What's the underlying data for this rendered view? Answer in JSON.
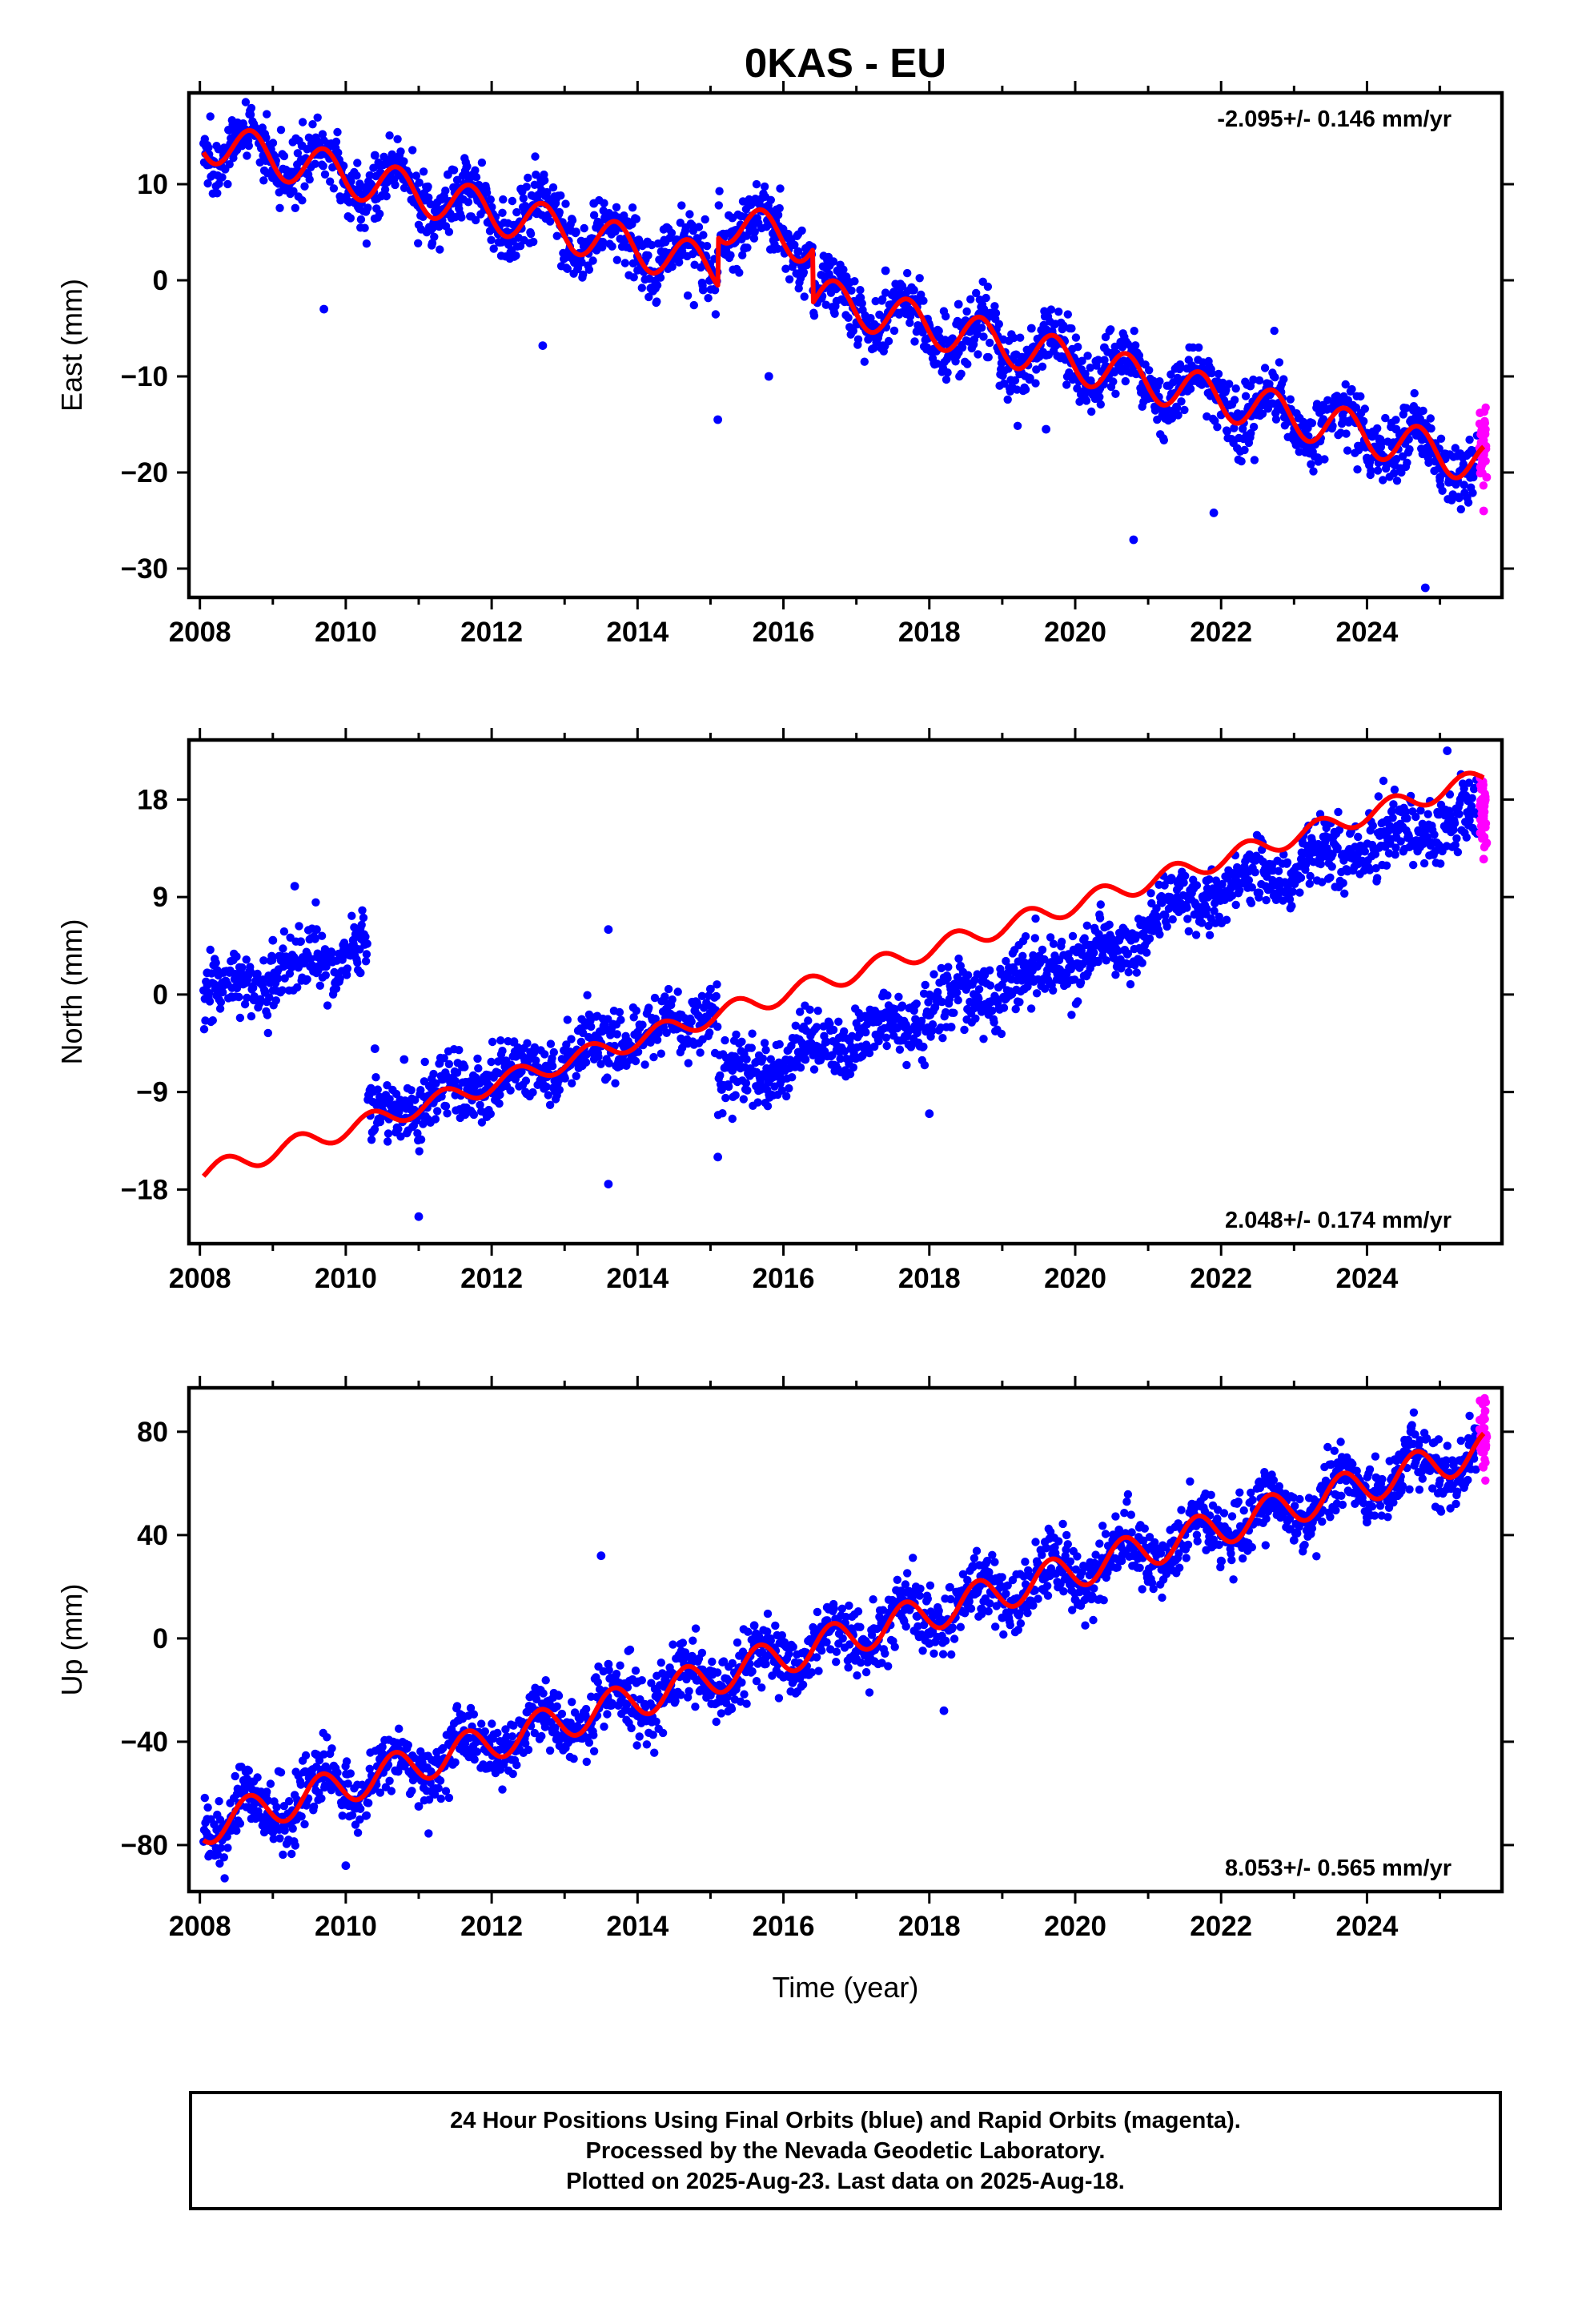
{
  "chart_data": {
    "type": "scatter",
    "title": "0KAS - EU",
    "xlabel": "Time (year)",
    "x_ticks": [
      "2008",
      "2010",
      "2012",
      "2014",
      "2016",
      "2018",
      "2020",
      "2022",
      "2024"
    ],
    "xlim": [
      2007.85,
      2025.85
    ],
    "colors": {
      "final_orbits": "#0000ff",
      "rapid_orbits": "#ff00ff",
      "model_fit": "#ff0000"
    },
    "panels": [
      {
        "ylabel": "East (mm)",
        "ylim": [
          -33,
          19.5
        ],
        "y_ticks": [
          10,
          0,
          -10,
          -20,
          -30
        ],
        "rate_label": "-2.095+/- 0.146 mm/yr",
        "rate_position": "top-right",
        "model": {
          "start_year": 2008.05,
          "end_year": 2025.6,
          "start_mm": 14.6,
          "end_mm": -18.6,
          "seasonal_amplitude_mm": 2.2,
          "phase_year": 0.45,
          "offsets": [
            {
              "year": 2015.1,
              "mm": 5.0
            },
            {
              "year": 2016.4,
              "mm": -5.5
            }
          ]
        },
        "observations": [
          [
            2008.1,
            12.0
          ],
          [
            2008.5,
            15.5
          ],
          [
            2009.0,
            11.5
          ],
          [
            2009.4,
            14.0
          ],
          [
            2009.7,
            -3.0
          ],
          [
            2010.0,
            10.5
          ],
          [
            2010.4,
            13.0
          ],
          [
            2011.0,
            8.5
          ],
          [
            2011.4,
            11.0
          ],
          [
            2012.0,
            6.5
          ],
          [
            2012.4,
            9.5
          ],
          [
            2012.7,
            -6.8
          ],
          [
            2013.0,
            5.0
          ],
          [
            2013.4,
            8.0
          ],
          [
            2014.0,
            2.5
          ],
          [
            2014.4,
            5.5
          ],
          [
            2014.9,
            -1.0
          ],
          [
            2015.1,
            -14.5
          ],
          [
            2015.3,
            6.5
          ],
          [
            2015.8,
            -10.0
          ],
          [
            2016.2,
            3.0
          ],
          [
            2016.8,
            -2.0
          ],
          [
            2017.4,
            1.0
          ],
          [
            2018.0,
            -5.0
          ],
          [
            2018.4,
            -2.5
          ],
          [
            2019.0,
            -8.0
          ],
          [
            2019.4,
            -5.0
          ],
          [
            2019.6,
            -15.5
          ],
          [
            2020.0,
            -10.0
          ],
          [
            2020.4,
            -7.0
          ],
          [
            2020.8,
            -27.0
          ],
          [
            2021.0,
            -12.0
          ],
          [
            2021.4,
            -9.0
          ],
          [
            2021.9,
            -24.2
          ],
          [
            2022.0,
            -14.0
          ],
          [
            2022.4,
            -11.0
          ],
          [
            2023.0,
            -16.0
          ],
          [
            2023.4,
            -13.0
          ],
          [
            2024.0,
            -18.5
          ],
          [
            2024.4,
            -15.5
          ],
          [
            2024.8,
            -32.0
          ],
          [
            2025.0,
            -20.5
          ],
          [
            2025.4,
            -18.0
          ]
        ],
        "rapid": [
          [
            2025.55,
            -13.8
          ],
          [
            2025.58,
            -19.0
          ],
          [
            2025.6,
            -24.0
          ],
          [
            2025.62,
            -16.0
          ],
          [
            2025.64,
            -20.5
          ]
        ]
      },
      {
        "ylabel": "North (mm)",
        "ylim": [
          -23,
          23.5
        ],
        "y_ticks": [
          18,
          9,
          0,
          -9,
          -18
        ],
        "rate_label": "2.048+/- 0.174 mm/yr",
        "rate_position": "bottom-right",
        "model": {
          "start_year": 2008.05,
          "end_year": 2025.6,
          "start_mm": -16.5,
          "end_mm": 20.0,
          "seasonal_amplitude_mm": 0.9,
          "phase_year": 0.1,
          "offsets": []
        },
        "observations": [
          [
            2008.1,
            2.0
          ],
          [
            2008.5,
            3.5
          ],
          [
            2009.0,
            5.0
          ],
          [
            2009.3,
            10.0
          ],
          [
            2009.6,
            6.0
          ],
          [
            2010.0,
            4.0
          ],
          [
            2010.2,
            2.0
          ],
          [
            2010.4,
            -5.0
          ],
          [
            2010.8,
            -6.0
          ],
          [
            2011.0,
            -20.5
          ],
          [
            2011.2,
            -10.0
          ],
          [
            2011.5,
            -8.0
          ],
          [
            2012.0,
            -7.5
          ],
          [
            2012.5,
            -6.0
          ],
          [
            2013.0,
            -6.0
          ],
          [
            2013.5,
            -4.5
          ],
          [
            2013.6,
            -17.5
          ],
          [
            2013.6,
            6.0
          ],
          [
            2014.0,
            -3.5
          ],
          [
            2014.5,
            -2.0
          ],
          [
            2015.0,
            0.5
          ],
          [
            2015.1,
            -15.0
          ],
          [
            2015.3,
            -7.0
          ],
          [
            2015.8,
            -8.0
          ],
          [
            2016.3,
            -6.0
          ],
          [
            2016.8,
            -5.0
          ],
          [
            2017.3,
            -2.5
          ],
          [
            2017.8,
            -1.0
          ],
          [
            2018.0,
            -11.0
          ],
          [
            2018.3,
            -3.0
          ],
          [
            2018.8,
            -1.0
          ],
          [
            2019.3,
            0.5
          ],
          [
            2019.8,
            1.5
          ],
          [
            2020.2,
            3.0
          ],
          [
            2020.6,
            5.0
          ],
          [
            2021.0,
            6.5
          ],
          [
            2021.4,
            9.0
          ],
          [
            2021.8,
            10.5
          ],
          [
            2022.3,
            11.5
          ],
          [
            2022.7,
            12.0
          ],
          [
            2023.1,
            12.5
          ],
          [
            2023.5,
            13.0
          ],
          [
            2023.9,
            13.5
          ],
          [
            2024.4,
            14.5
          ],
          [
            2024.8,
            15.5
          ],
          [
            2025.1,
            22.5
          ],
          [
            2025.4,
            16.5
          ]
        ],
        "rapid": [
          [
            2025.55,
            20.0
          ],
          [
            2025.58,
            16.0
          ],
          [
            2025.6,
            12.5
          ],
          [
            2025.62,
            18.0
          ],
          [
            2025.64,
            14.0
          ]
        ]
      },
      {
        "ylabel": "Up (mm)",
        "ylim": [
          -98,
          97
        ],
        "y_ticks": [
          80,
          40,
          0,
          -40,
          -80
        ],
        "rate_label": "8.053+/- 0.565 mm/yr",
        "rate_position": "bottom-right",
        "model": {
          "start_year": 2008.05,
          "end_year": 2025.6,
          "start_mm": -73.0,
          "end_mm": 73.0,
          "seasonal_amplitude_mm": 7.0,
          "phase_year": 0.42,
          "offsets": []
        },
        "observations": [
          [
            2008.1,
            -70.0
          ],
          [
            2008.6,
            -55.0
          ],
          [
            2009.0,
            -75.0
          ],
          [
            2009.6,
            -45.0
          ],
          [
            2010.0,
            -88.0
          ],
          [
            2010.5,
            -42.0
          ],
          [
            2011.0,
            -65.0
          ],
          [
            2011.6,
            -30.0
          ],
          [
            2012.0,
            -50.0
          ],
          [
            2012.6,
            -22.0
          ],
          [
            2013.0,
            -42.0
          ],
          [
            2013.5,
            32.0
          ],
          [
            2013.6,
            -10.0
          ],
          [
            2014.0,
            -30.0
          ],
          [
            2014.6,
            -5.0
          ],
          [
            2015.0,
            -22.0
          ],
          [
            2015.6,
            5.0
          ],
          [
            2016.0,
            -15.0
          ],
          [
            2016.6,
            12.0
          ],
          [
            2017.0,
            -8.0
          ],
          [
            2017.6,
            18.0
          ],
          [
            2018.0,
            -2.0
          ],
          [
            2018.2,
            -28.0
          ],
          [
            2018.6,
            28.0
          ],
          [
            2019.0,
            8.0
          ],
          [
            2019.6,
            35.0
          ],
          [
            2020.0,
            15.0
          ],
          [
            2020.6,
            42.0
          ],
          [
            2021.0,
            22.0
          ],
          [
            2021.6,
            52.0
          ],
          [
            2022.0,
            30.0
          ],
          [
            2022.6,
            60.0
          ],
          [
            2023.0,
            38.0
          ],
          [
            2023.6,
            68.0
          ],
          [
            2024.0,
            45.0
          ],
          [
            2024.6,
            80.0
          ],
          [
            2025.0,
            50.0
          ],
          [
            2025.4,
            75.0
          ]
        ],
        "rapid": [
          [
            2025.55,
            92.0
          ],
          [
            2025.58,
            85.0
          ],
          [
            2025.6,
            72.0
          ],
          [
            2025.62,
            88.0
          ],
          [
            2025.64,
            78.0
          ]
        ]
      }
    ]
  },
  "footer": {
    "line1": "24 Hour Positions Using Final Orbits (blue) and Rapid Orbits (magenta).",
    "line2": "Processed by the Nevada Geodetic Laboratory.",
    "line3": "Plotted on 2025-Aug-23. Last data on 2025-Aug-18."
  }
}
